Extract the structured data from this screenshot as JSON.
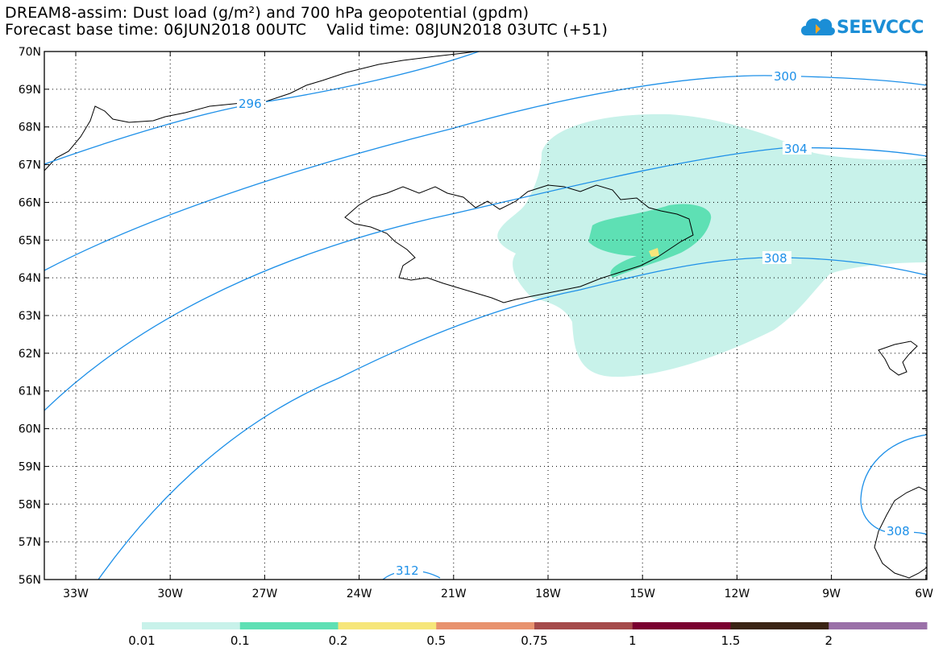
{
  "header": {
    "title_line1": "DREAM8-assim: Dust load (g/m²) and 700 hPa geopotential (gpdm)",
    "title_line2": "Forecast base time: 06JUN2018 00UTC    Valid time: 08JUN2018 03UTC (+51)"
  },
  "logo": {
    "text": "SEEVCCC",
    "icon": "cloud-icon",
    "color": "#1b8ed6"
  },
  "map": {
    "lat_ticks": [
      "70N",
      "69N",
      "68N",
      "67N",
      "66N",
      "65N",
      "64N",
      "63N",
      "62N",
      "61N",
      "60N",
      "59N",
      "58N",
      "57N",
      "56N"
    ],
    "lon_ticks": [
      "33W",
      "30W",
      "27W",
      "24W",
      "21W",
      "18W",
      "15W",
      "12W",
      "9W",
      "6W"
    ],
    "contour_labels": [
      "296",
      "300",
      "304",
      "308",
      "312",
      "308"
    ],
    "contour_color": "#1e90e8",
    "coastline_color": "#000000"
  },
  "colorbar": {
    "labels": [
      "0.01",
      "0.1",
      "0.2",
      "0.5",
      "0.75",
      "1",
      "1.5",
      "2"
    ],
    "colors": [
      "#c8f2ea",
      "#5ee0b4",
      "#f6e67a",
      "#e8926e",
      "#a54a4a",
      "#7a0030",
      "#3a2414",
      "#9a70a8"
    ]
  }
}
